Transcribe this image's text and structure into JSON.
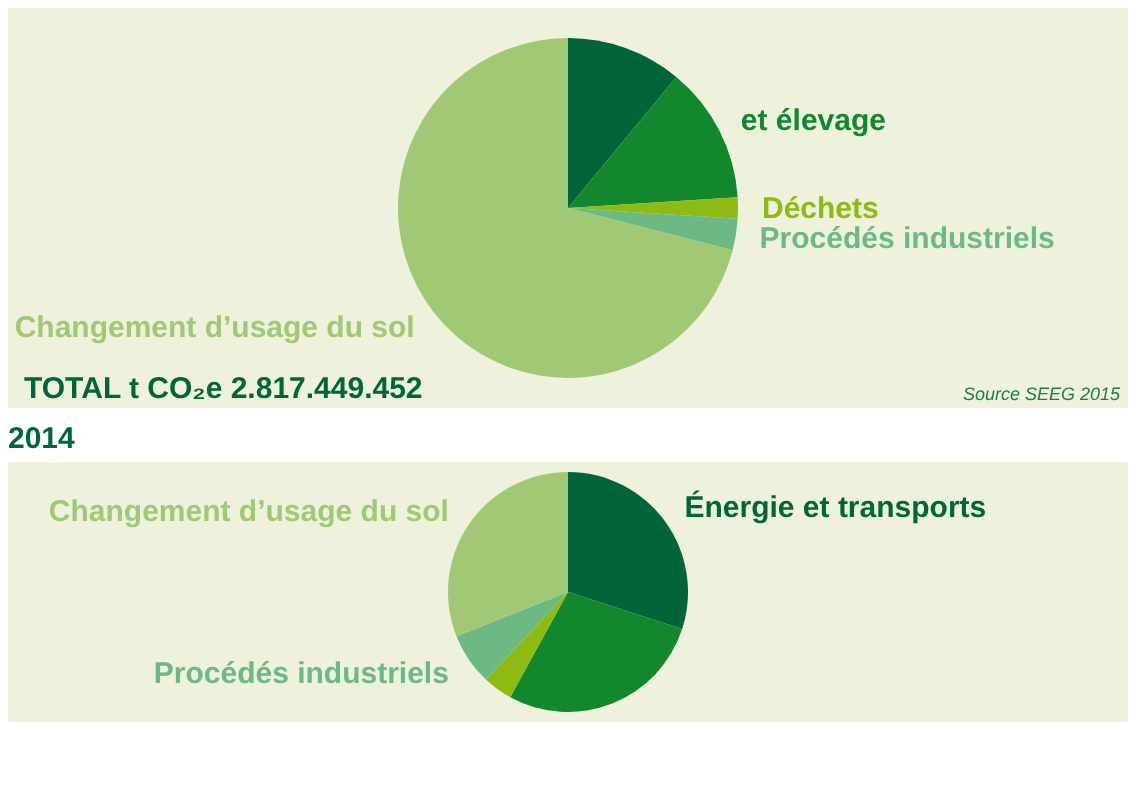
{
  "chart_data": [
    {
      "type": "pie",
      "categories": [
        null,
        "et élevage",
        "Déchets",
        "Procédés industriels",
        "Changement d’usage du sol"
      ],
      "values": [
        11,
        13,
        2,
        3,
        71
      ],
      "colors": [
        "#00663a",
        "#12872e",
        "#8dbb14",
        "#6db983",
        "#a1c875"
      ],
      "annotations": [
        "TOTAL  t CO₂e  2.817.449.452",
        "Source SEEG 2015"
      ]
    },
    {
      "type": "pie",
      "title": "2014",
      "categories": [
        "Énergie et transports",
        null,
        null,
        "Procédés industriels",
        "Changement d’usage du sol"
      ],
      "values": [
        30,
        28,
        4,
        7,
        31
      ],
      "colors": [
        "#00663a",
        "#12872e",
        "#8dbb14",
        "#6db983",
        "#a1c875"
      ]
    }
  ]
}
